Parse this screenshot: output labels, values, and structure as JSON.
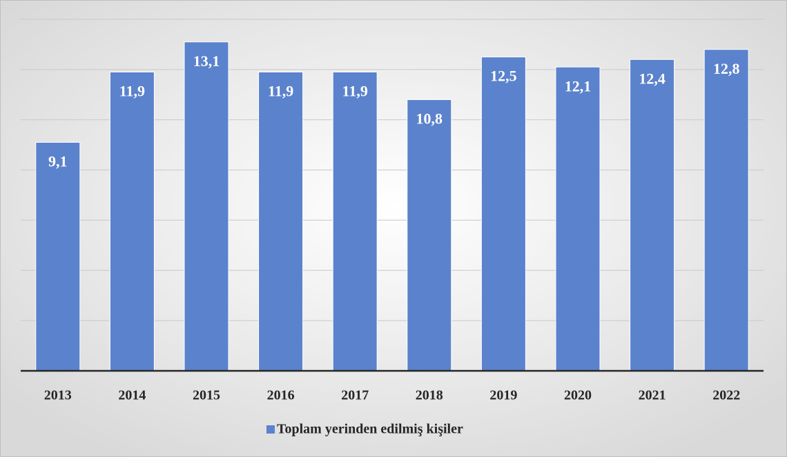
{
  "chart_data": {
    "type": "bar",
    "categories": [
      "2013",
      "2014",
      "2015",
      "2016",
      "2017",
      "2018",
      "2019",
      "2020",
      "2021",
      "2022"
    ],
    "series": [
      {
        "name": "Toplam yerinden edilmiş kişiler",
        "color": "#5b82cc",
        "values": [
          9.1,
          11.9,
          13.1,
          11.9,
          11.9,
          10.8,
          12.5,
          12.1,
          12.4,
          12.8
        ],
        "value_labels": [
          "9,1",
          "11,9",
          "13,1",
          "11,9",
          "11,9",
          "10,8",
          "12,5",
          "12,1",
          "12,4",
          "12,8"
        ]
      }
    ],
    "ylim": [
      0,
      14
    ],
    "yticks": [
      0,
      2,
      4,
      6,
      8,
      10,
      12,
      14
    ],
    "grid": true,
    "legend": "bottom"
  }
}
